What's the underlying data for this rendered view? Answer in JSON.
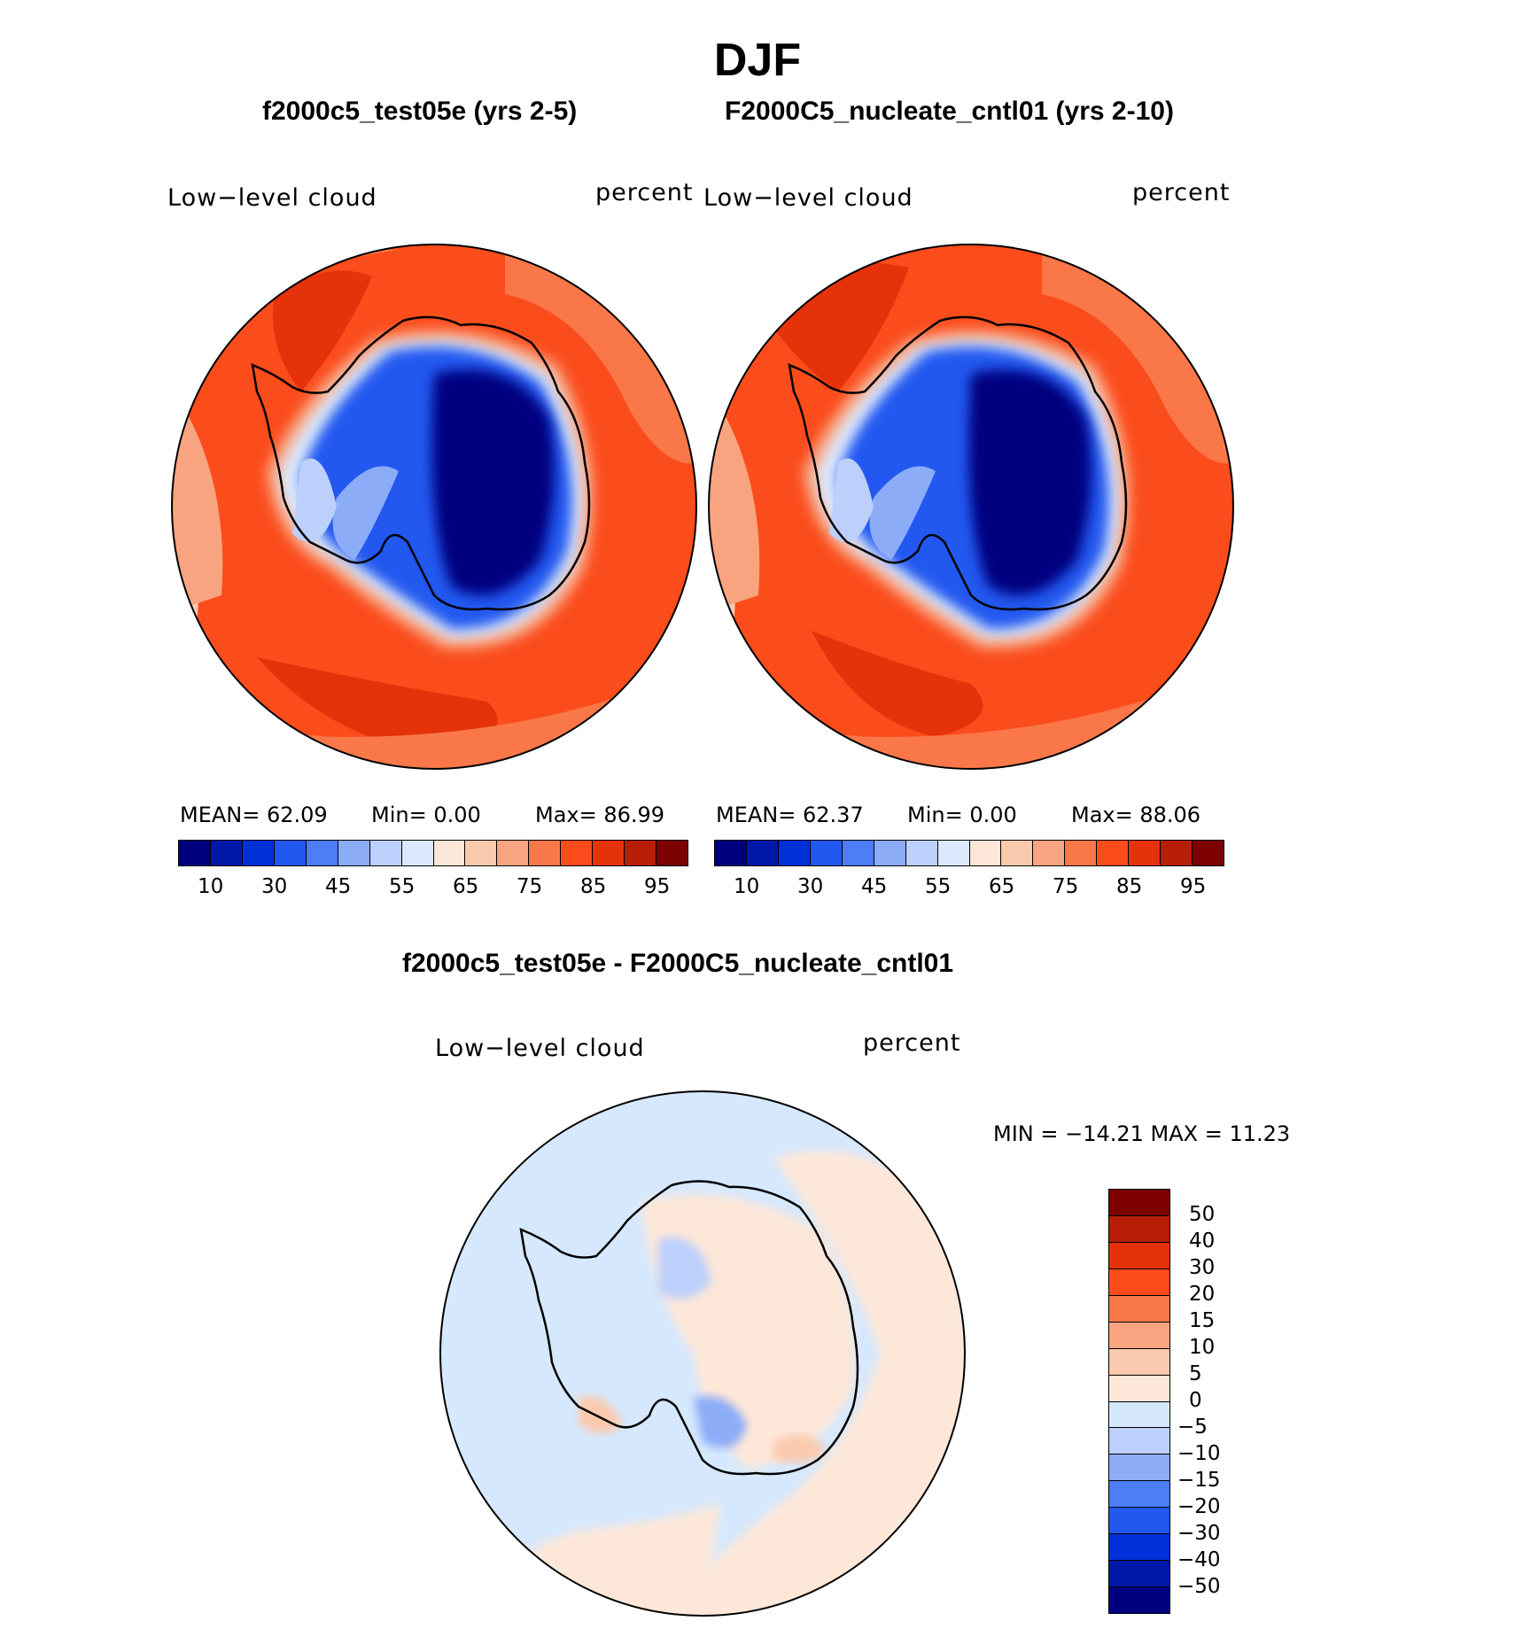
{
  "title": "DJF",
  "panels": [
    {
      "title": "f2000c5_test05e (yrs 2-5)",
      "field_label": "Low−level cloud",
      "units_label": "percent",
      "mean": "MEAN=   62.09",
      "min": "Min=    0.00",
      "max": "Max=   86.99",
      "colorbar_ticks": [
        "10",
        "30",
        "45",
        "55",
        "65",
        "75",
        "85",
        "95"
      ]
    },
    {
      "title": "F2000C5_nucleate_cntl01 (yrs 2-10)",
      "field_label": "Low−level cloud",
      "units_label": "percent",
      "mean": "MEAN=   62.37",
      "min": "Min=    0.00",
      "max": "Max=   88.06",
      "colorbar_ticks": [
        "10",
        "30",
        "45",
        "55",
        "65",
        "75",
        "85",
        "95"
      ]
    }
  ],
  "diff": {
    "title": "f2000c5_test05e - F2000C5_nucleate_cntl01",
    "field_label": "Low−level cloud",
    "units_label": "percent",
    "minmax": "MIN = −14.21  MAX =   11.23",
    "colorbar_ticks": [
      "50",
      "40",
      "30",
      "20",
      "15",
      "10",
      "5",
      "0",
      "−5",
      "−10",
      "−15",
      "−20",
      "−30",
      "−40",
      "−50"
    ]
  },
  "colors": {
    "abs_scale": [
      "#00007f",
      "#0018a8",
      "#0030d8",
      "#2058f0",
      "#4c7ef5",
      "#8cacf8",
      "#bcd0fb",
      "#dce9fd",
      "#fde7d8",
      "#fbc9ae",
      "#f9a481",
      "#f97748",
      "#fb4c1c",
      "#e5320a",
      "#b81d08",
      "#7d0000"
    ],
    "diff_scale": [
      "#7d0000",
      "#b81d08",
      "#e5320a",
      "#fb4c1c",
      "#f97748",
      "#f9a481",
      "#fbc9ae",
      "#fde7d8",
      "#d6e8fd",
      "#bcd0fb",
      "#8cacf8",
      "#4c7ef5",
      "#2058f0",
      "#0030d8",
      "#0018a8",
      "#00007f"
    ]
  }
}
